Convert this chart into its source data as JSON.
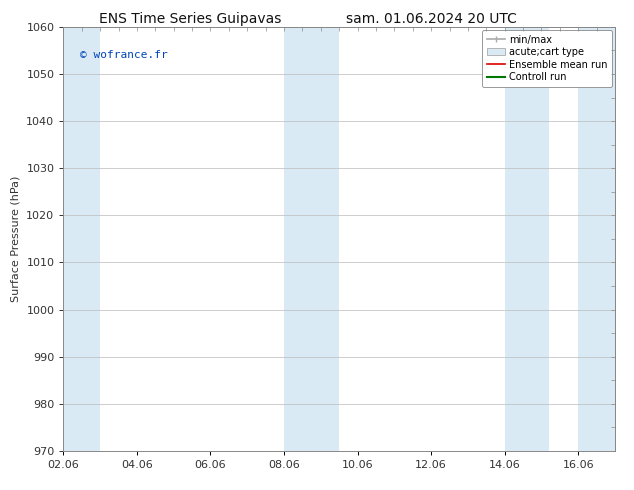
{
  "title_left": "ENS Time Series Guipavas",
  "title_right": "sam. 01.06.2024 20 UTC",
  "ylabel": "Surface Pressure (hPa)",
  "ylim": [
    970,
    1060
  ],
  "yticks": [
    970,
    980,
    990,
    1000,
    1010,
    1020,
    1030,
    1040,
    1050,
    1060
  ],
  "xmin": 0,
  "xmax": 15,
  "xtick_labels": [
    "02.06",
    "04.06",
    "06.06",
    "08.06",
    "10.06",
    "12.06",
    "14.06",
    "16.06"
  ],
  "xtick_positions": [
    0,
    2,
    4,
    6,
    8,
    10,
    12,
    14
  ],
  "blue_bands": [
    {
      "start": -0.1,
      "end": 1.0
    },
    {
      "start": 6.0,
      "end": 7.5
    },
    {
      "start": 12.0,
      "end": 13.2
    },
    {
      "start": 14.0,
      "end": 15.1
    }
  ],
  "band_color": "#daeaf5",
  "background_color": "#ffffff",
  "watermark": "© wofrance.fr",
  "watermark_color": "#0044bb",
  "legend_entries": [
    {
      "label": "min/max",
      "color": "#aaaaaa",
      "lw": 1.2,
      "type": "errbar"
    },
    {
      "label": "acute;cart type",
      "color": "#daeaf5",
      "edgecolor": "#aaaaaa",
      "type": "fill"
    },
    {
      "label": "Ensemble mean run",
      "color": "#dd0000",
      "lw": 1.2,
      "type": "line"
    },
    {
      "label": "Controll run",
      "color": "#007700",
      "lw": 1.5,
      "type": "line"
    }
  ],
  "grid_color": "#bbbbbb",
  "spine_color": "#888888",
  "tick_color": "#333333",
  "title_fontsize": 10,
  "axis_label_fontsize": 8,
  "tick_fontsize": 8,
  "legend_fontsize": 7
}
